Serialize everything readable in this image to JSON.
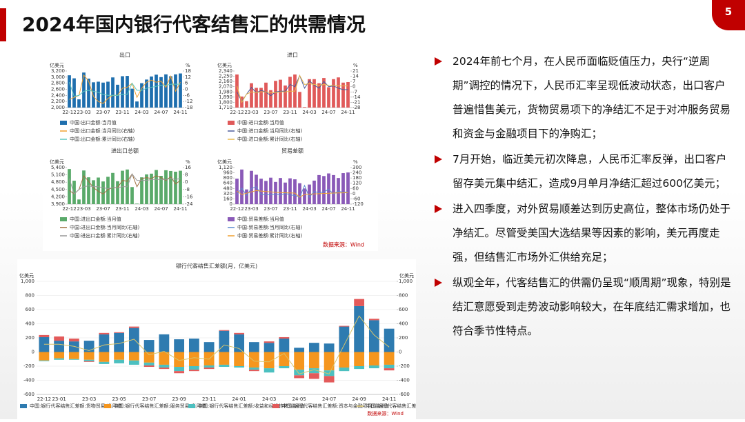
{
  "slide": {
    "title": "2024年国内银行代客结售汇的供需情况",
    "page_number": "5",
    "panel_source": "数据来源：Wind",
    "bullets": [
      "2024年前七个月，在人民币面临贬值压力，央行“逆周期”调控的情况下，人民币汇率呈现低波动状态，出口客户普遍惜售美元，货物贸易项下的净结汇不足于对冲服务贸易和资金与金融项目下的净购汇；",
      "7月开始，临近美元初次降息，人民币汇率反弹，出口客户留存美元集中结汇，造成9月单月净结汇超过600亿美元；",
      "进入四季度，对外贸易顺差达到历史高位，整体市场仍处于净结汇。尽管受美国大选结果等因素的影响，美元再度走强，但结售汇市场外汇供给充足；",
      "纵观全年，代客结售汇的供需仍呈现“顺周期”现象，特别是结汇意愿受到走势波动影响较大，在年底结汇需求增加，也符合季节性特点。"
    ]
  },
  "chart_data": [
    {
      "type": "bar",
      "title": "出口",
      "y_unit": "亿美元",
      "y2_unit": "%",
      "categories": [
        "22-12",
        null,
        null,
        "23-03",
        null,
        null,
        null,
        "23-07",
        null,
        null,
        null,
        "23-11",
        null,
        null,
        null,
        "24-03",
        null,
        null,
        null,
        "24-07",
        null,
        null,
        null,
        "24-11"
      ],
      "ylim": [
        2000,
        3200
      ],
      "yticks": [
        {
          "value": 2000,
          "label": "2,000"
        },
        {
          "value": 2200,
          "label": "2,200"
        },
        {
          "value": 2400,
          "label": "2,400"
        },
        {
          "value": 2600,
          "label": "2,600"
        },
        {
          "value": 2800,
          "label": "2,800"
        },
        {
          "value": 3000,
          "label": "3,000"
        },
        {
          "value": 3200,
          "label": "3,200"
        }
      ],
      "y2lim": [
        -18,
        18
      ],
      "y2ticks": [
        -18,
        -12,
        -6,
        0,
        6,
        12,
        18
      ],
      "series": [
        {
          "name": "中国:出口金额:当月值",
          "type": "bar",
          "color": "#1f6fae",
          "values": [
            3060,
            2960,
            2270,
            3150,
            2950,
            2830,
            2850,
            2820,
            2850,
            2990,
            2750,
            3030,
            3040,
            2620,
            2200,
            2800,
            2920,
            3020,
            3080,
            3000,
            3090,
            3030,
            3090,
            3120
          ]
        },
        {
          "name": "中国:出口金额:当月同比(右轴)",
          "type": "line",
          "axis": "y2",
          "color": "#f0a030",
          "values": [
            -10,
            -8,
            -6,
            14,
            8,
            -7,
            -12,
            -14,
            -9,
            -6,
            -6,
            1,
            2,
            6,
            -8,
            1,
            7,
            9,
            7,
            8,
            2,
            13,
            -2,
            7
          ]
        },
        {
          "name": "中国:出口金额:累计同比(右轴)",
          "type": "line",
          "axis": "y2",
          "color": "#5cc8c0",
          "values": [
            7,
            -7,
            -6,
            -2,
            -1,
            -2,
            -3,
            -5,
            -6,
            -6,
            -6,
            -5,
            -5,
            6,
            -1,
            -1,
            1,
            2,
            3,
            4,
            4,
            5,
            5,
            5
          ]
        }
      ]
    },
    {
      "type": "bar",
      "title": "进口",
      "y_unit": "亿美元",
      "y2_unit": "%",
      "categories": [
        "22-12",
        null,
        null,
        "23-03",
        null,
        null,
        null,
        "23-07",
        null,
        null,
        null,
        "23-11",
        null,
        null,
        null,
        "24-03",
        null,
        null,
        null,
        "24-07",
        null,
        null,
        null,
        "24-11"
      ],
      "ylim": [
        1710,
        2340
      ],
      "yticks": [
        {
          "value": 1710,
          "label": "1,710"
        },
        {
          "value": 1800,
          "label": "1,800"
        },
        {
          "value": 1890,
          "label": "1,890"
        },
        {
          "value": 1980,
          "label": "1,980"
        },
        {
          "value": 2070,
          "label": "2,070"
        },
        {
          "value": 2160,
          "label": "2,160"
        },
        {
          "value": 2250,
          "label": "2,250"
        },
        {
          "value": 2340,
          "label": "2,340"
        }
      ],
      "y2lim": [
        -28,
        21
      ],
      "y2ticks": [
        -28,
        -21,
        -14,
        -7,
        0,
        7,
        14,
        21
      ],
      "series": [
        {
          "name": "中国:进口金额:当月值",
          "type": "bar",
          "color": "#e05a5a",
          "values": [
            2280,
            1900,
            1820,
            2130,
            2050,
            2050,
            2140,
            2010,
            2170,
            2190,
            2090,
            2240,
            2280,
            1980,
            1720,
            2200,
            2200,
            2130,
            2220,
            2060,
            2200,
            2230,
            2140,
            2150
          ]
        },
        {
          "name": "中国:进口金额:当月同比(右轴)",
          "type": "line",
          "axis": "y2",
          "color": "#4a5a9a",
          "values": [
            -7,
            -20,
            -10,
            -1,
            -8,
            -5,
            -7,
            -12,
            -7,
            -6,
            -6,
            3,
            0,
            15,
            -2,
            8,
            2,
            -2,
            7,
            0,
            1,
            -2,
            -4,
            -4
          ]
        },
        {
          "name": "中国:进口金额:累计同比(右轴)",
          "type": "line",
          "axis": "y2",
          "color": "#e8b84a",
          "values": [
            1,
            -21,
            -10,
            -7,
            -8,
            -7,
            -7,
            -8,
            -8,
            -7,
            -7,
            -6,
            -6,
            15,
            3,
            4,
            3,
            2,
            3,
            2,
            2,
            1,
            1,
            1
          ]
        }
      ]
    },
    {
      "type": "bar",
      "title": "进出口总额",
      "y_unit": "亿美元",
      "y2_unit": "%",
      "categories": [
        "22-12",
        null,
        null,
        "23-03",
        null,
        null,
        null,
        "23-07",
        null,
        null,
        null,
        "23-11",
        null,
        null,
        null,
        "24-03",
        null,
        null,
        null,
        "24-07",
        null,
        null,
        null,
        "24-11"
      ],
      "ylim": [
        3900,
        5400
      ],
      "yticks": [
        {
          "value": 3900,
          "label": "3,900"
        },
        {
          "value": 4200,
          "label": "4,200"
        },
        {
          "value": 4500,
          "label": "4,500"
        },
        {
          "value": 4800,
          "label": "4,800"
        },
        {
          "value": 5100,
          "label": "5,100"
        },
        {
          "value": 5400,
          "label": "5,400"
        }
      ],
      "y2lim": [
        -24,
        16
      ],
      "y2ticks": [
        -24,
        -16,
        -8,
        0,
        8,
        16
      ],
      "series": [
        {
          "name": "中国:进出口金额:当月值",
          "type": "bar",
          "color": "#5aaa6a",
          "values": [
            5340,
            4860,
            4090,
            5280,
            5000,
            4880,
            4990,
            4830,
            5020,
            5180,
            4840,
            5270,
            5320,
            4600,
            3920,
            5000,
            5120,
            5150,
            5300,
            5060,
            5290,
            5260,
            5230,
            5270
          ]
        },
        {
          "name": "中国:进出口金额:当月同比(右轴)",
          "type": "line",
          "axis": "y2",
          "color": "#a07040",
          "values": [
            -9,
            -13,
            -8,
            7,
            1,
            -6,
            -10,
            -13,
            -8,
            -6,
            -6,
            2,
            1,
            9,
            -5,
            4,
            5,
            4,
            7,
            5,
            2,
            6,
            -2,
            2
          ]
        },
        {
          "name": "中国:进出口金额:累计同比(右轴)",
          "type": "line",
          "axis": "y2",
          "color": "#999999",
          "values": [
            4,
            -13,
            -8,
            -5,
            -4,
            -5,
            -5,
            -6,
            -7,
            -6,
            -6,
            -5,
            -5,
            9,
            2,
            2,
            2,
            3,
            3,
            3,
            3,
            4,
            3,
            4
          ]
        }
      ]
    },
    {
      "type": "bar",
      "title": "贸易差额",
      "y_unit": "亿美元",
      "y2_unit": "%",
      "categories": [
        "22-12",
        null,
        null,
        "23-03",
        null,
        null,
        null,
        "23-07",
        null,
        null,
        null,
        "23-11",
        null,
        null,
        null,
        "24-03",
        null,
        null,
        null,
        "24-07",
        null,
        null,
        null,
        "24-11"
      ],
      "ylim": [
        0,
        1120
      ],
      "yticks": [
        0,
        160,
        320,
        480,
        640,
        800,
        960,
        {
          "value": 1120,
          "label": "1,120"
        }
      ],
      "y2lim": [
        -120,
        300
      ],
      "y2ticks": [
        -120,
        -60,
        0,
        60,
        120,
        180,
        240,
        300
      ],
      "series": [
        {
          "name": "中国:贸易差额:当月值",
          "type": "bar",
          "color": "#8a5ab8",
          "values": [
            780,
            1060,
            450,
            1020,
            900,
            780,
            710,
            810,
            680,
            800,
            660,
            790,
            760,
            640,
            480,
            600,
            720,
            890,
            860,
            940,
            890,
            800,
            950,
            970
          ]
        },
        {
          "name": "中国:贸易差额:当月同比(右轴)",
          "type": "line",
          "axis": "y2",
          "color": "#5a8ad0",
          "values": [
            -10,
            65,
            -20,
            60,
            80,
            -10,
            -12,
            -14,
            -2,
            -18,
            5,
            -15,
            -20,
            -40,
            95,
            -40,
            25,
            10,
            20,
            50,
            -5,
            30,
            15,
            20
          ]
        },
        {
          "name": "中国:贸易差额:累计同比(右轴)",
          "type": "line",
          "axis": "y2",
          "color": "#f0a030",
          "values": [
            30,
            -10,
            5,
            20,
            35,
            30,
            25,
            20,
            15,
            12,
            10,
            8,
            7,
            -40,
            -10,
            -5,
            -3,
            0,
            2,
            5,
            7,
            8,
            10,
            12
          ]
        }
      ]
    },
    {
      "type": "stacked_bar",
      "title": "银行代客结售汇差额(月，亿美元)",
      "y_unit": "亿美元",
      "y2_unit": "亿美元",
      "grid": true,
      "source": "数据来源：Wind",
      "categories": [
        "22-12",
        "23-01",
        null,
        "23-03",
        null,
        "23-05",
        null,
        "23-07",
        null,
        "23-09",
        null,
        "23-11",
        null,
        "24-01",
        null,
        "24-03",
        null,
        "24-05",
        null,
        "24-07",
        null,
        "24-09",
        null,
        "24-11"
      ],
      "ylim": [
        -600,
        1000
      ],
      "yticks": [
        -600,
        -400,
        -200,
        0,
        200,
        400,
        600,
        800,
        {
          "value": 1000,
          "label": "1,000"
        }
      ],
      "y2lim": [
        -600,
        1000
      ],
      "y2ticks": [
        -600,
        -400,
        -200,
        0,
        200,
        400,
        600,
        800,
        {
          "value": 1000,
          "label": "1,000"
        }
      ],
      "series": [
        {
          "name": "中国:银行代客结售汇差额:货物贸易:当月值",
          "type": "bar",
          "color": "#2e7bb0",
          "values": [
            210,
            160,
            150,
            160,
            250,
            270,
            340,
            170,
            250,
            180,
            190,
            140,
            300,
            250,
            140,
            130,
            190,
            60,
            130,
            120,
            360,
            650,
            450,
            330
          ]
        },
        {
          "name": "中国:银行代客结售汇差额:服务贸易:当月值",
          "type": "bar",
          "color": "#f5961e",
          "values": [
            -120,
            -90,
            -100,
            -110,
            -140,
            -110,
            -120,
            -150,
            -180,
            -210,
            -200,
            -190,
            -180,
            -200,
            -220,
            -230,
            -200,
            -250,
            -230,
            -260,
            -220,
            -200,
            -190,
            -180
          ]
        },
        {
          "name": "中国:银行代客结售汇差额:收益和经常转移:当月值",
          "type": "bar",
          "color": "#4cc0c0",
          "values": [
            -10,
            -20,
            -10,
            -20,
            -30,
            -50,
            -60,
            -40,
            -40,
            -60,
            -50,
            -30,
            -30,
            -20,
            -30,
            -60,
            -30,
            -80,
            -70,
            -80,
            -50,
            -40,
            -40,
            -50
          ]
        },
        {
          "name": "中国:银行代客结售汇差额:资本与金融项目:当月值",
          "type": "bar",
          "color": "#e35a5a",
          "values": [
            30,
            60,
            40,
            -10,
            20,
            10,
            20,
            -20,
            -20,
            -30,
            -20,
            -20,
            10,
            20,
            -20,
            20,
            20,
            -40,
            -80,
            -90,
            10,
            100,
            20,
            -30
          ]
        },
        {
          "name": "中国:银行代客结售汇差额:当月值",
          "type": "line",
          "axis": "y2",
          "color": "#d8c46a",
          "values": [
            110,
            110,
            80,
            20,
            100,
            120,
            180,
            -40,
            10,
            -120,
            -80,
            -100,
            100,
            50,
            -130,
            -140,
            -20,
            -310,
            -250,
            -310,
            100,
            510,
            240,
            70
          ]
        }
      ]
    }
  ]
}
